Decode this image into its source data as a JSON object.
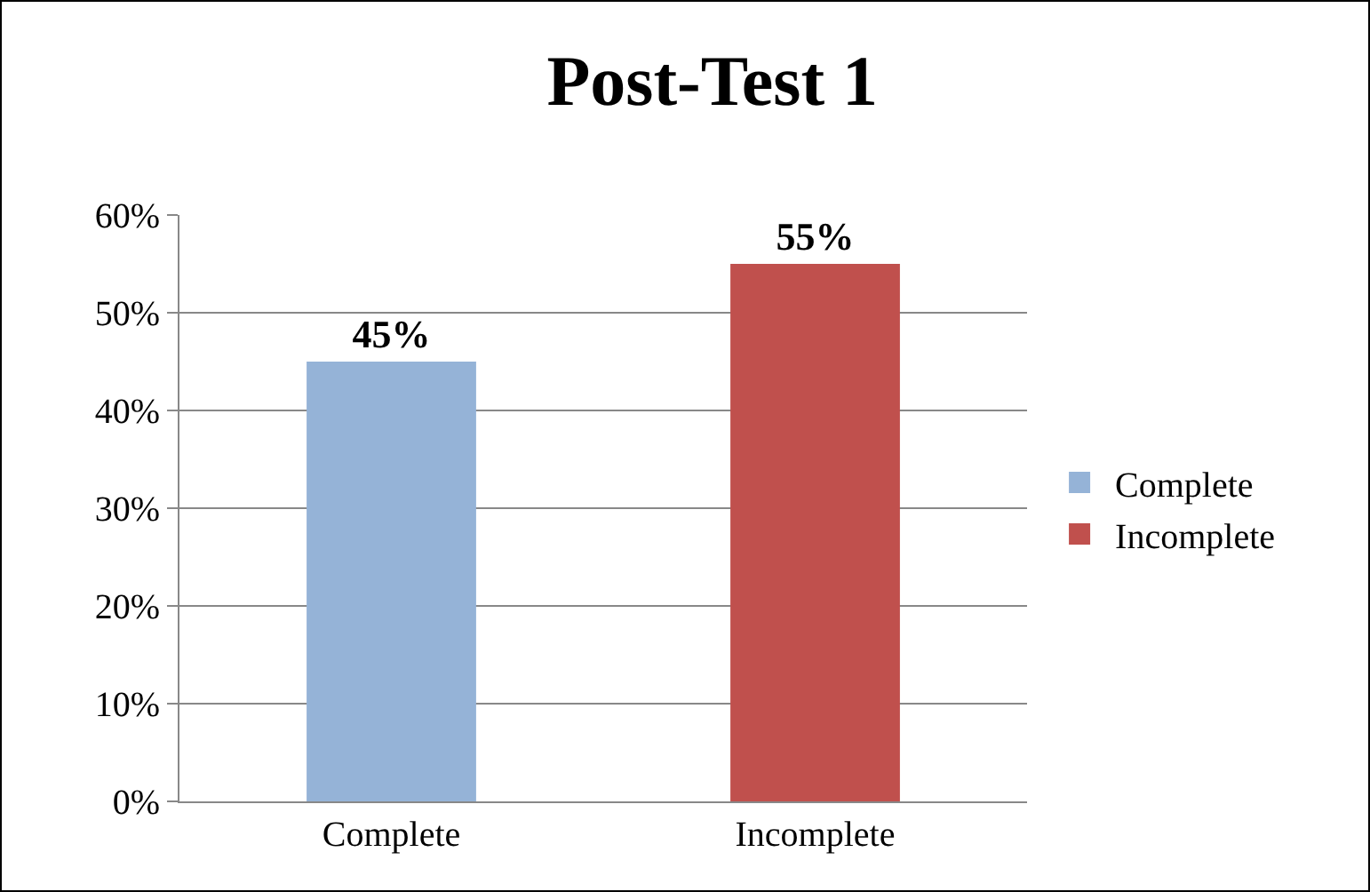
{
  "chart_data": {
    "type": "bar",
    "title": "Post-Test 1",
    "categories": [
      "Complete",
      "Incomplete"
    ],
    "series": [
      {
        "name": "Complete",
        "color": "#95b3d7",
        "values": [
          45,
          null
        ],
        "value_labels": [
          "45%",
          null
        ]
      },
      {
        "name": "Incomplete",
        "color": "#c0504d",
        "values": [
          null,
          55
        ],
        "value_labels": [
          null,
          "55%"
        ]
      }
    ],
    "ylim": [
      0,
      60
    ],
    "yticks": [
      {
        "value": 0,
        "label": "0%"
      },
      {
        "value": 10,
        "label": "10%"
      },
      {
        "value": 20,
        "label": "20%"
      },
      {
        "value": 30,
        "label": "30%"
      },
      {
        "value": 40,
        "label": "40%"
      },
      {
        "value": 50,
        "label": "50%"
      },
      {
        "value": 60,
        "label": "60%"
      }
    ],
    "grid": "y",
    "legend": "right"
  }
}
